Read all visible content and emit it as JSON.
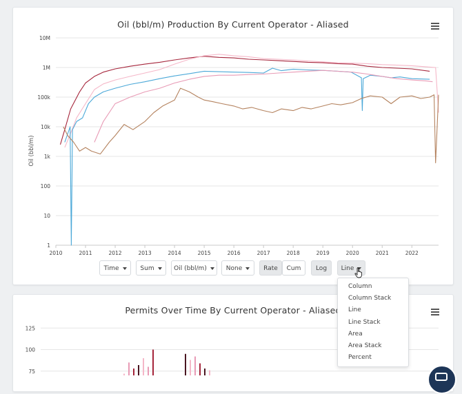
{
  "chart_data": [
    {
      "type": "line",
      "title": "Oil (bbl/m) Production By Current Operator - Aliased",
      "ylabel": "Oil (bbl/m)",
      "xlabel": "",
      "yscale": "log",
      "ylim": [
        1,
        10000000
      ],
      "xlim": [
        2010,
        2022.9
      ],
      "yticks": [
        "1",
        "10",
        "100",
        "1k",
        "10k",
        "100k",
        "1M",
        "10M"
      ],
      "xticks": [
        "2010",
        "2011",
        "2012",
        "2013",
        "2014",
        "2015",
        "2016",
        "2017",
        "2018",
        "2019",
        "2020",
        "2021",
        "2022"
      ],
      "grid": true,
      "legend": "none",
      "series": [
        {
          "color": "#a5243a",
          "x": [
            2010.15,
            2010.3,
            2010.5,
            2010.8,
            2011.0,
            2011.3,
            2011.6,
            2012.0,
            2012.5,
            2013.0,
            2013.5,
            2014.0,
            2014.5,
            2015.0,
            2015.5,
            2016.0,
            2016.5,
            2017.0,
            2017.5,
            2018.0,
            2018.5,
            2019.0,
            2019.5,
            2020.0,
            2020.5,
            2021.0,
            2021.5,
            2022.0,
            2022.6
          ],
          "y": [
            2500,
            8000,
            40000,
            150000,
            300000,
            500000,
            700000,
            900000,
            1100000,
            1300000,
            1500000,
            1800000,
            2100000,
            2400000,
            2200000,
            2100000,
            1900000,
            1800000,
            1700000,
            1600000,
            1500000,
            1450000,
            1350000,
            1300000,
            1100000,
            1000000,
            950000,
            900000,
            750000
          ]
        },
        {
          "color": "#f5b7c8",
          "x": [
            2010.3,
            2010.5,
            2010.7,
            2011.0,
            2011.3,
            2011.6,
            2012.0,
            2012.5,
            2013.0,
            2013.5,
            2014.0,
            2014.5,
            2015.0,
            2015.5,
            2016.0,
            2016.5,
            2017.0,
            2017.5,
            2018.0,
            2018.5,
            2019.0,
            2019.5,
            2020.0,
            2020.5,
            2021.0,
            2021.5,
            2022.0,
            2022.5,
            2022.8,
            2022.9
          ],
          "y": [
            2000,
            6000,
            20000,
            60000,
            180000,
            280000,
            380000,
            500000,
            650000,
            850000,
            1300000,
            1900000,
            2500000,
            2800000,
            2500000,
            2300000,
            2000000,
            1900000,
            1800000,
            1650000,
            1550000,
            1450000,
            1400000,
            1350000,
            1250000,
            1200000,
            1150000,
            1050000,
            1000000,
            30000
          ]
        },
        {
          "color": "#4aa8d8",
          "x": [
            2010.3,
            2010.48,
            2010.52,
            2010.56,
            2010.7,
            2010.9,
            2011.1,
            2011.3,
            2011.6,
            2012.0,
            2012.5,
            2013.0,
            2013.5,
            2014.0,
            2014.5,
            2015.0,
            2015.5,
            2016.0,
            2016.5,
            2017.0,
            2017.3,
            2017.6,
            2018.0,
            2018.5,
            2019.0,
            2019.5,
            2019.95,
            2020.3,
            2020.33,
            2020.36,
            2020.6,
            2021.0,
            2021.3,
            2021.6,
            2022.0,
            2022.6
          ],
          "y": [
            3000,
            10000,
            1,
            8000,
            15000,
            20000,
            60000,
            100000,
            150000,
            200000,
            270000,
            330000,
            420000,
            520000,
            620000,
            750000,
            720000,
            700000,
            680000,
            650000,
            950000,
            780000,
            880000,
            830000,
            800000,
            750000,
            700000,
            450000,
            35000,
            420000,
            550000,
            500000,
            450000,
            480000,
            420000,
            400000
          ]
        },
        {
          "color": "#e89ab5",
          "x": [
            2011.3,
            2011.6,
            2012.0,
            2012.5,
            2013.0,
            2013.5,
            2014.0,
            2014.5,
            2015.0,
            2015.5,
            2016.0,
            2016.5,
            2017.0,
            2017.5,
            2018.0,
            2018.5,
            2019.0,
            2019.5,
            2020.0,
            2020.5,
            2021.0,
            2021.5,
            2022.0,
            2022.5,
            2022.7
          ],
          "y": [
            3000,
            15000,
            60000,
            100000,
            150000,
            200000,
            300000,
            400000,
            500000,
            550000,
            550000,
            580000,
            600000,
            650000,
            700000,
            750000,
            800000,
            750000,
            700000,
            600000,
            500000,
            420000,
            380000,
            350000,
            330000
          ]
        },
        {
          "color": "#b4825e",
          "x": [
            2010.25,
            2010.4,
            2010.6,
            2010.8,
            2011.0,
            2011.2,
            2011.5,
            2011.8,
            2012.0,
            2012.3,
            2012.6,
            2013.0,
            2013.3,
            2013.6,
            2014.0,
            2014.2,
            2014.5,
            2014.8,
            2015.0,
            2015.3,
            2015.6,
            2016.0,
            2016.3,
            2016.6,
            2017.0,
            2017.3,
            2017.6,
            2018.0,
            2018.3,
            2018.6,
            2019.0,
            2019.3,
            2019.6,
            2020.0,
            2020.3,
            2020.6,
            2021.0,
            2021.3,
            2021.6,
            2022.0,
            2022.3,
            2022.6,
            2022.75,
            2022.8,
            2022.9
          ],
          "y": [
            10000,
            5000,
            3000,
            1500,
            2000,
            1500,
            1200,
            3000,
            5000,
            12000,
            8000,
            15000,
            30000,
            50000,
            80000,
            200000,
            150000,
            100000,
            80000,
            70000,
            60000,
            50000,
            40000,
            45000,
            35000,
            30000,
            40000,
            35000,
            45000,
            40000,
            50000,
            60000,
            55000,
            65000,
            90000,
            110000,
            100000,
            60000,
            100000,
            110000,
            90000,
            100000,
            120000,
            600,
            120000
          ]
        }
      ]
    },
    {
      "type": "bar",
      "title": "Permits Over Time By Current Operator - Aliased",
      "ylabel": "",
      "xlabel": "",
      "yticks": [
        "75",
        "100",
        "125"
      ],
      "ylim_visible": [
        70,
        130
      ],
      "grid": true,
      "colors": [
        "#f5b7c8",
        "#e89ab5",
        "#a5243a",
        "#4a1520"
      ],
      "values_visible": [
        72,
        85,
        78,
        82,
        90,
        80,
        100,
        95,
        88,
        92,
        84,
        78,
        76
      ]
    }
  ],
  "controls": {
    "time_label": "Time",
    "sum_label": "Sum",
    "metric_label": "Oil (bbl/m)",
    "none_label": "None",
    "rate_label": "Rate",
    "cum_label": "Cum",
    "log_label": "Log",
    "line_label": "Line"
  },
  "chart_type_menu": {
    "options": [
      "Column",
      "Column Stack",
      "Line",
      "Line Stack",
      "Area",
      "Area Stack",
      "Percent"
    ]
  },
  "icons": {
    "menu": "hamburger-menu-icon",
    "chat": "chat-icon",
    "cursor": "hand-pointer-icon"
  }
}
